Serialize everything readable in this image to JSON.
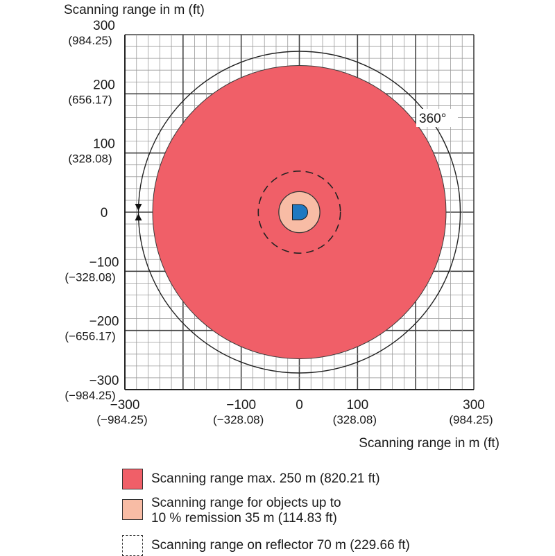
{
  "x_axis": {
    "title": "Scanning range in m (ft)",
    "ticks": [
      {
        "value": -300,
        "m": "−300",
        "ft": "(−984.25)"
      },
      {
        "value": -100,
        "m": "−100",
        "ft": "(−328.08)"
      },
      {
        "value": 0,
        "m": "0",
        "ft": ""
      },
      {
        "value": 100,
        "m": "100",
        "ft": "(328.08)"
      },
      {
        "value": 300,
        "m": "300",
        "ft": "(984.25)"
      }
    ]
  },
  "y_axis": {
    "title": "Scanning range in m (ft)",
    "ticks": [
      {
        "value": 300,
        "m": "300",
        "ft": "(984.25)"
      },
      {
        "value": 200,
        "m": "200",
        "ft": "(656.17)"
      },
      {
        "value": 100,
        "m": "100",
        "ft": "(328.08)"
      },
      {
        "value": 0,
        "m": "0",
        "ft": ""
      },
      {
        "value": -100,
        "m": "−100",
        "ft": "(−328.08)"
      },
      {
        "value": -200,
        "m": "−200",
        "ft": "(−656.17)"
      },
      {
        "value": -300,
        "m": "−300",
        "ft": "(−984.25)"
      }
    ]
  },
  "angle_label": "360°",
  "ranges": {
    "max_m": 250,
    "remission_m": 35,
    "reflector_m": 70
  },
  "colors": {
    "max_range": "#f05f68",
    "remission_range": "#f8bca5",
    "sensor": "#1f78c1",
    "grid": "#9a9a9a"
  },
  "legend": {
    "max_range_label": "Scanning range max. 250 m (820.21 ft)",
    "remission_line1": "Scanning range for objects up to",
    "remission_line2": "10 % remission 35 m (114.83 ft)",
    "reflector_label": "Scanning range on reflector 70 m (229.66 ft)"
  }
}
